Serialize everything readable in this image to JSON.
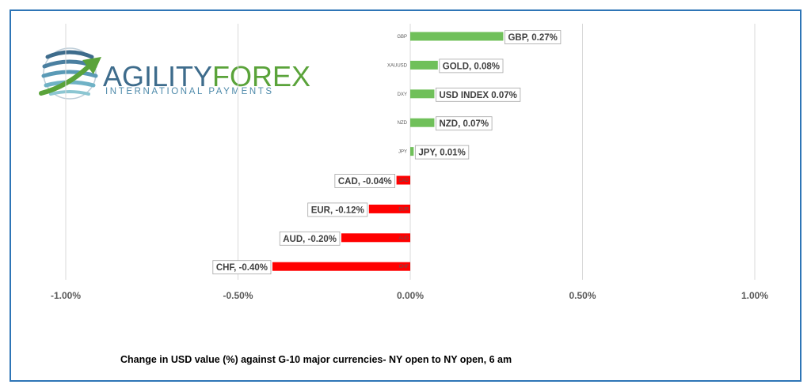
{
  "logo": {
    "brand_part1": "AGILITY",
    "brand_part2": "FOREX",
    "tagline": "INTERNATIONAL PAYMENTS"
  },
  "caption": "Change in  USD value (%)  against  G-10 major currencies-  NY open to  NY open, 6 am",
  "colors": {
    "positive": "#70c05a",
    "negative": "#ff0000",
    "frame": "#2e75b6"
  },
  "chart_data": {
    "type": "bar",
    "orientation": "horizontal",
    "categories": [
      "GBP",
      "XAUUSD",
      "DXY",
      "NZD",
      "JPY",
      "CAD",
      "EUR",
      "AUD",
      "CHF"
    ],
    "values": [
      0.27,
      0.08,
      0.07,
      0.07,
      0.01,
      -0.04,
      -0.12,
      -0.2,
      -0.4
    ],
    "data_labels": [
      "GBP, 0.27%",
      "GOLD, 0.08%",
      "USD INDEX 0.07%",
      "NZD, 0.07%",
      "JPY, 0.01%",
      "CAD, -0.04%",
      "EUR, -0.12%",
      "AUD, -0.20%",
      "CHF, -0.40%"
    ],
    "xlim": [
      -1.0,
      1.0
    ],
    "x_ticks": [
      -1.0,
      -0.5,
      0.0,
      0.5,
      1.0
    ],
    "x_tick_labels": [
      "-1.00%",
      "-0.50%",
      "0.00%",
      "0.50%",
      "1.00%"
    ],
    "grid": "vertical"
  }
}
